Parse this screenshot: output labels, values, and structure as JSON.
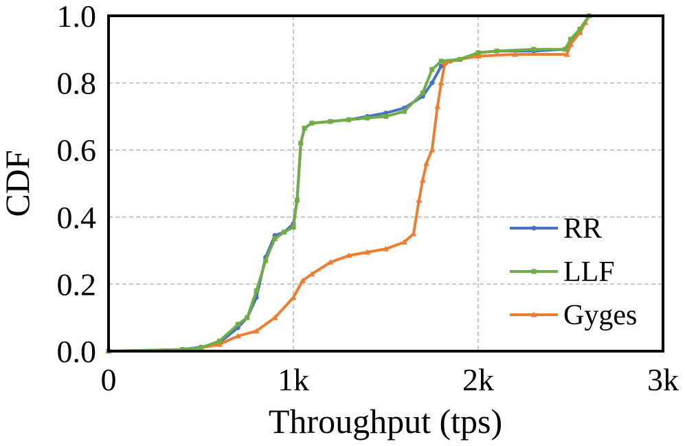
{
  "chart_data": {
    "type": "line",
    "title": "",
    "xlabel": "Throughput (tps)",
    "ylabel": "CDF",
    "xlim": [
      0,
      3000
    ],
    "ylim": [
      0,
      1.0
    ],
    "x_ticks": [
      {
        "value": 0,
        "label": "0"
      },
      {
        "value": 1000,
        "label": "1k"
      },
      {
        "value": 2000,
        "label": "2k"
      },
      {
        "value": 3000,
        "label": "3k"
      }
    ],
    "y_ticks": [
      {
        "value": 0.0,
        "label": "0.0"
      },
      {
        "value": 0.2,
        "label": "0.2"
      },
      {
        "value": 0.4,
        "label": "0.4"
      },
      {
        "value": 0.6,
        "label": "0.6"
      },
      {
        "value": 0.8,
        "label": "0.8"
      },
      {
        "value": 1.0,
        "label": "1.0"
      }
    ],
    "grid": true,
    "legend_position": "bottom-right",
    "series": [
      {
        "name": "RR",
        "color": "#4472C4",
        "marker": "circle",
        "points": [
          [
            0,
            0
          ],
          [
            400,
            0.005
          ],
          [
            500,
            0.012
          ],
          [
            600,
            0.025
          ],
          [
            700,
            0.07
          ],
          [
            750,
            0.1
          ],
          [
            800,
            0.16
          ],
          [
            850,
            0.28
          ],
          [
            900,
            0.345
          ],
          [
            950,
            0.355
          ],
          [
            1000,
            0.38
          ],
          [
            1020,
            0.45
          ],
          [
            1040,
            0.62
          ],
          [
            1060,
            0.665
          ],
          [
            1100,
            0.68
          ],
          [
            1200,
            0.685
          ],
          [
            1300,
            0.69
          ],
          [
            1400,
            0.7
          ],
          [
            1500,
            0.71
          ],
          [
            1600,
            0.725
          ],
          [
            1700,
            0.76
          ],
          [
            1750,
            0.8
          ],
          [
            1800,
            0.85
          ],
          [
            1850,
            0.865
          ],
          [
            1900,
            0.87
          ],
          [
            2000,
            0.89
          ],
          [
            2100,
            0.895
          ],
          [
            2300,
            0.895
          ],
          [
            2470,
            0.9
          ],
          [
            2500,
            0.92
          ],
          [
            2550,
            0.95
          ],
          [
            2600,
            1.0
          ]
        ]
      },
      {
        "name": "LLF",
        "color": "#70AD47",
        "marker": "square",
        "points": [
          [
            0,
            0
          ],
          [
            400,
            0.005
          ],
          [
            500,
            0.01
          ],
          [
            600,
            0.03
          ],
          [
            700,
            0.08
          ],
          [
            750,
            0.1
          ],
          [
            800,
            0.18
          ],
          [
            850,
            0.27
          ],
          [
            900,
            0.335
          ],
          [
            950,
            0.355
          ],
          [
            1000,
            0.37
          ],
          [
            1020,
            0.45
          ],
          [
            1040,
            0.62
          ],
          [
            1060,
            0.665
          ],
          [
            1100,
            0.68
          ],
          [
            1200,
            0.685
          ],
          [
            1300,
            0.69
          ],
          [
            1400,
            0.695
          ],
          [
            1500,
            0.7
          ],
          [
            1600,
            0.715
          ],
          [
            1700,
            0.77
          ],
          [
            1750,
            0.84
          ],
          [
            1800,
            0.865
          ],
          [
            1900,
            0.87
          ],
          [
            2000,
            0.89
          ],
          [
            2100,
            0.895
          ],
          [
            2300,
            0.9
          ],
          [
            2470,
            0.9
          ],
          [
            2500,
            0.93
          ],
          [
            2550,
            0.96
          ],
          [
            2600,
            1.0
          ]
        ]
      },
      {
        "name": "Gyges",
        "color": "#ED7D31",
        "marker": "triangle",
        "points": [
          [
            0,
            0
          ],
          [
            400,
            0.004
          ],
          [
            500,
            0.01
          ],
          [
            600,
            0.02
          ],
          [
            700,
            0.045
          ],
          [
            800,
            0.06
          ],
          [
            900,
            0.1
          ],
          [
            1000,
            0.16
          ],
          [
            1050,
            0.21
          ],
          [
            1100,
            0.23
          ],
          [
            1200,
            0.265
          ],
          [
            1300,
            0.285
          ],
          [
            1400,
            0.295
          ],
          [
            1500,
            0.305
          ],
          [
            1600,
            0.325
          ],
          [
            1650,
            0.35
          ],
          [
            1680,
            0.45
          ],
          [
            1700,
            0.51
          ],
          [
            1720,
            0.56
          ],
          [
            1750,
            0.6
          ],
          [
            1780,
            0.73
          ],
          [
            1800,
            0.8
          ],
          [
            1820,
            0.86
          ],
          [
            1900,
            0.87
          ],
          [
            2000,
            0.88
          ],
          [
            2200,
            0.885
          ],
          [
            2480,
            0.885
          ],
          [
            2500,
            0.915
          ],
          [
            2550,
            0.95
          ],
          [
            2580,
            0.98
          ],
          [
            2600,
            1.0
          ]
        ]
      }
    ]
  }
}
